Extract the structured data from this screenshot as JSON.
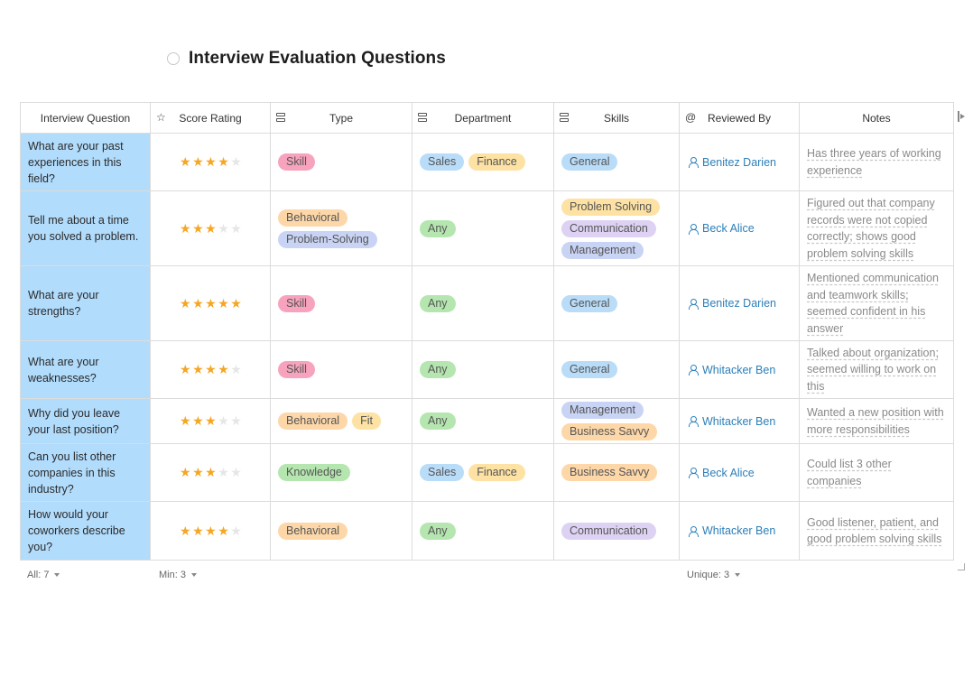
{
  "title": "Interview Evaluation Questions",
  "columns": [
    {
      "label": "Interview Question",
      "icon": ""
    },
    {
      "label": "Score Rating",
      "icon": "star-icon"
    },
    {
      "label": "Type",
      "icon": "select-icon"
    },
    {
      "label": "Department",
      "icon": "select-icon"
    },
    {
      "label": "Skills",
      "icon": "select-icon"
    },
    {
      "label": "Reviewed By",
      "icon": "at-icon"
    },
    {
      "label": "Notes",
      "icon": ""
    }
  ],
  "tag_colors": {
    "Skill": "#f7a3bd",
    "Behavioral": "#fdd7a8",
    "Problem-Solving": "#c9d4f5",
    "Fit": "#fde2a4",
    "Knowledge": "#b5e6b0",
    "Sales": "#b9dcf8",
    "Finance": "#fde2a4",
    "Any": "#b5e6b0",
    "General": "#b9dcf8",
    "Problem Solving": "#fde2a4",
    "Communication": "#ddd2f3",
    "Management": "#c9d4f5",
    "Business Savvy": "#fdd7a8"
  },
  "rows": [
    {
      "question": "What are your past experiences in this field?",
      "rating": 4,
      "type": [
        "Skill"
      ],
      "department": [
        "Sales",
        "Finance"
      ],
      "skills": [
        "General"
      ],
      "reviewer": "Benitez Darien",
      "notes": "Has three years of working experience"
    },
    {
      "question": "Tell me about a time you solved a problem.",
      "rating": 3,
      "type": [
        "Behavioral",
        "Problem-Solving"
      ],
      "department": [
        "Any"
      ],
      "skills": [
        "Problem Solving",
        "Communication",
        "Management"
      ],
      "reviewer": "Beck Alice",
      "notes": "Figured out that company records were not copied correctly; shows good problem solving skills"
    },
    {
      "question": "What are your strengths?",
      "rating": 5,
      "type": [
        "Skill"
      ],
      "department": [
        "Any"
      ],
      "skills": [
        "General"
      ],
      "reviewer": "Benitez Darien",
      "notes": "Mentioned communication and teamwork skills; seemed confident in his answer"
    },
    {
      "question": "What are your weaknesses?",
      "rating": 4,
      "type": [
        "Skill"
      ],
      "department": [
        "Any"
      ],
      "skills": [
        "General"
      ],
      "reviewer": "Whitacker Ben",
      "notes": "Talked about organization; seemed willing to work on this"
    },
    {
      "question": "Why did you leave your last position?",
      "rating": 3,
      "type": [
        "Behavioral",
        "Fit"
      ],
      "department": [
        "Any"
      ],
      "skills": [
        "Management",
        "Business Savvy"
      ],
      "reviewer": "Whitacker Ben",
      "notes": "Wanted a new position with more responsibilities"
    },
    {
      "question": "Can you list other companies in this industry?",
      "rating": 3,
      "type": [
        "Knowledge"
      ],
      "department": [
        "Sales",
        "Finance"
      ],
      "skills": [
        "Business Savvy"
      ],
      "reviewer": "Beck Alice",
      "notes": "Could list 3 other companies"
    },
    {
      "question": "How would your coworkers describe you?",
      "rating": 4,
      "type": [
        "Behavioral"
      ],
      "department": [
        "Any"
      ],
      "skills": [
        "Communication"
      ],
      "reviewer": "Whitacker Ben",
      "notes": "Good listener, patient, and good problem solving skills"
    }
  ],
  "max_rating": 5,
  "footer": {
    "count": "All: 7",
    "min": "Min: 3",
    "unique": "Unique: 3"
  }
}
